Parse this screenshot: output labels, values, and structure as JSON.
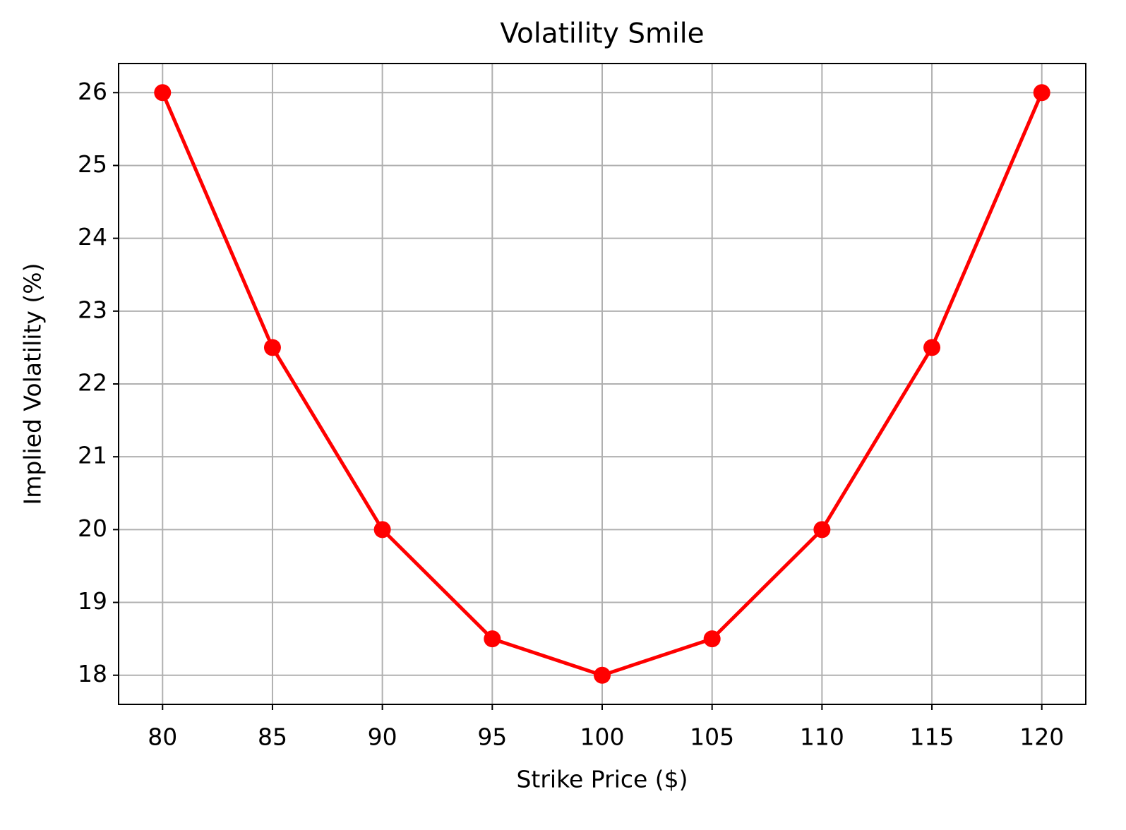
{
  "chart_data": {
    "type": "line",
    "title": "Volatility Smile",
    "x_label": "Strike Price ($)",
    "y_label": "Implied Volatility (%)",
    "x": [
      80,
      85,
      90,
      95,
      100,
      105,
      110,
      115,
      120
    ],
    "values": [
      26,
      22.5,
      20,
      18.5,
      18,
      18.5,
      20,
      22.5,
      26
    ],
    "color": "#ff0000",
    "markers": true,
    "xlim": [
      78,
      122
    ],
    "xticks": [
      80,
      85,
      90,
      95,
      100,
      105,
      110,
      115,
      120
    ],
    "ylim": [
      17.6,
      26.4
    ],
    "yticks": [
      18,
      19,
      20,
      21,
      22,
      23,
      24,
      25,
      26
    ],
    "grid": true
  }
}
